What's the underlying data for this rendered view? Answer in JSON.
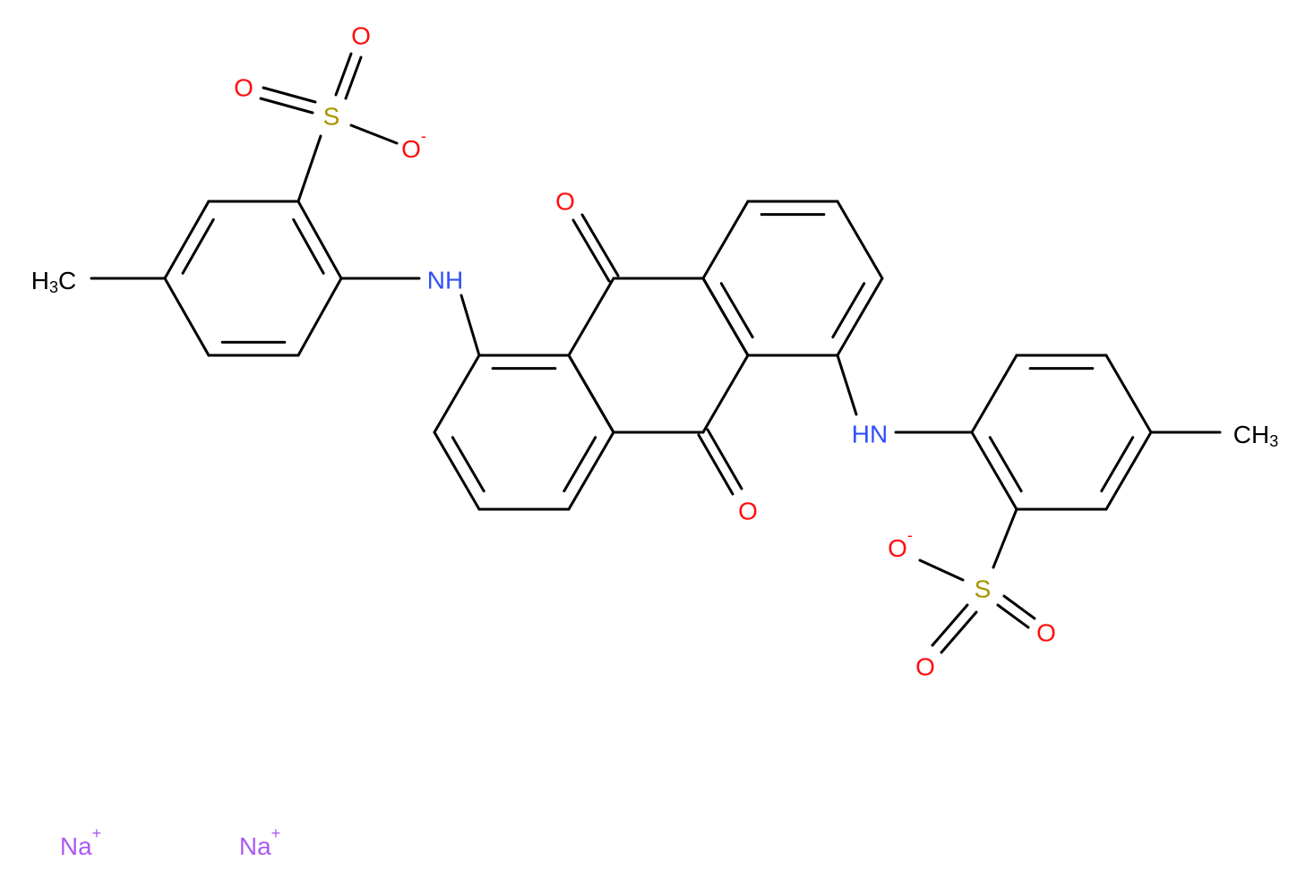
{
  "atoms": [
    {
      "symbol": "O"
    },
    {
      "symbol": "O"
    },
    {
      "symbol": "S"
    },
    {
      "symbol": "O",
      "charge": "-"
    },
    {
      "symbol": "H",
      "count": "3",
      "rest": "C"
    },
    {
      "symbol": "NH"
    },
    {
      "symbol": "O"
    },
    {
      "symbol": "O"
    },
    {
      "symbol": "HN"
    },
    {
      "symbol": "CH",
      "count": "3"
    },
    {
      "symbol": "O",
      "charge": "-"
    },
    {
      "symbol": "S"
    },
    {
      "symbol": "O"
    },
    {
      "symbol": "O"
    }
  ],
  "ions": [
    {
      "symbol": "Na",
      "charge": "+"
    },
    {
      "symbol": "Na",
      "charge": "+"
    }
  ]
}
